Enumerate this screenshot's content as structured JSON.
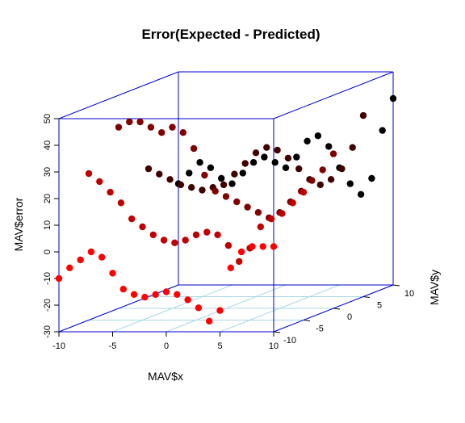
{
  "chart_data": {
    "type": "scatter",
    "subtype": "3d-scatter",
    "title": "Error(Expected - Predicted)",
    "xlabel": "MAV$x",
    "ylabel": "MAV$y",
    "zlabel": "MAV$error",
    "x_ticks": [
      "-10",
      "-5",
      "0",
      "5",
      "10"
    ],
    "y_ticks": [
      "-10",
      "-5",
      "0",
      "5",
      "10"
    ],
    "z_ticks": [
      "-30",
      "-20",
      "-10",
      "0",
      "10",
      "20",
      "30",
      "40",
      "50"
    ],
    "xlim": [
      -10,
      10
    ],
    "ylim": [
      -10,
      10
    ],
    "zlim": [
      -30,
      50
    ],
    "box_color": "#0000cc",
    "grid_color": "#a8d8e8",
    "point_color_near": "#ff0000",
    "point_color_far": "#000000",
    "color_encoding": "depth (y): red near, black far",
    "series": [
      {
        "x": [
          -10,
          -9,
          -8,
          -7,
          -6,
          -5,
          -4,
          -3,
          -2,
          -1,
          0,
          1,
          2,
          3,
          4,
          5,
          6,
          7,
          8,
          9,
          10
        ],
        "y": [
          -10,
          -10,
          -10,
          -10,
          -10,
          -10,
          -10,
          -10,
          -10,
          -10,
          -10,
          -10,
          -10,
          -10,
          -10,
          -10,
          -10,
          -10,
          -10,
          -10,
          -10
        ],
        "z": [
          -10,
          -6,
          -3,
          0,
          -2,
          -8,
          -14,
          -16,
          -17,
          -16,
          -15,
          -16,
          -18,
          -21,
          -26,
          -22,
          -6,
          0,
          2,
          2,
          2
        ]
      },
      {
        "x": [
          -10,
          -9,
          -8,
          -7,
          -6,
          -5,
          -4,
          -3,
          -2,
          -1,
          0,
          1,
          2,
          3,
          4,
          5,
          6,
          7,
          8,
          9,
          10
        ],
        "y": [
          -5,
          -5,
          -5,
          -5,
          -5,
          -5,
          -5,
          -5,
          -5,
          -5,
          -5,
          -5,
          -5,
          -5,
          -5,
          -5,
          -5,
          -5,
          -5,
          -5,
          -5
        ],
        "z": [
          25,
          22,
          18,
          14,
          8,
          5,
          2,
          0,
          -1,
          0,
          2,
          3,
          2,
          -2,
          -8,
          -3,
          5,
          8,
          10,
          14,
          18
        ]
      },
      {
        "x": [
          -10,
          -9,
          -8,
          -7,
          -6,
          -5,
          -4,
          -3,
          -2,
          -1,
          0,
          1,
          2,
          3,
          4,
          5,
          6,
          7,
          8,
          9,
          10
        ],
        "y": [
          0,
          0,
          0,
          0,
          0,
          0,
          0,
          0,
          0,
          0,
          0,
          0,
          0,
          0,
          0,
          0,
          0,
          0,
          0,
          0,
          0
        ],
        "z": [
          38,
          40,
          40,
          38,
          36,
          38,
          36,
          30,
          20,
          14,
          12,
          10,
          8,
          6,
          4,
          6,
          10,
          14,
          18,
          22,
          28
        ]
      },
      {
        "x": [
          -10,
          -9,
          -8,
          -7,
          -6,
          -5,
          -4,
          -3,
          -2,
          -1,
          0,
          1,
          2,
          3,
          4,
          5,
          6,
          7,
          8,
          9,
          10
        ],
        "y": [
          5,
          5,
          5,
          5,
          5,
          5,
          5,
          5,
          5,
          5,
          5,
          5,
          5,
          5,
          5,
          5,
          5,
          5,
          5,
          5,
          5
        ],
        "z": [
          18,
          16,
          14,
          12,
          11,
          10,
          11,
          12,
          16,
          20,
          24,
          26,
          25,
          22,
          18,
          14,
          12,
          14,
          18,
          26,
          38
        ]
      },
      {
        "x": [
          -10,
          -9,
          -8,
          -7,
          -6,
          -5,
          -4,
          -3,
          -2,
          -1,
          0,
          1,
          2,
          3,
          4,
          5,
          6,
          7,
          8,
          9,
          10
        ],
        "y": [
          10,
          10,
          10,
          10,
          10,
          10,
          10,
          10,
          10,
          10,
          10,
          10,
          10,
          10,
          10,
          10,
          10,
          10,
          10,
          10,
          10
        ],
        "z": [
          8,
          12,
          16,
          14,
          10,
          8,
          12,
          16,
          18,
          16,
          14,
          18,
          24,
          26,
          22,
          14,
          8,
          4,
          10,
          28,
          40
        ]
      }
    ]
  }
}
